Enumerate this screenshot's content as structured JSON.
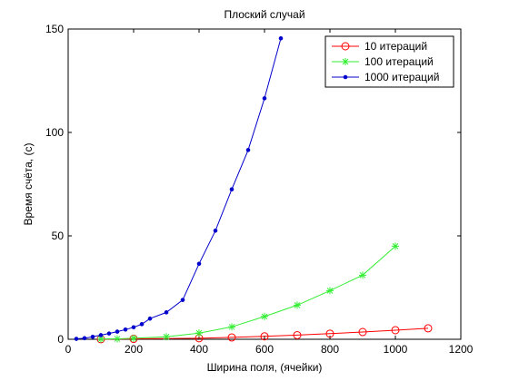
{
  "chart_data": {
    "type": "line",
    "title": "Плоский случай",
    "xlabel": "Ширина поля, (ячейки)",
    "ylabel": "Время счёта, (с)",
    "xlim": [
      0,
      1200
    ],
    "ylim": [
      0,
      150
    ],
    "xticks": [
      0,
      200,
      400,
      600,
      800,
      1000,
      1200
    ],
    "yticks": [
      0,
      50,
      100,
      150
    ],
    "grid": false,
    "legend_position": "top-right",
    "series": [
      {
        "name": "10 итераций",
        "color": "#ff0000",
        "marker": "circle",
        "x": [
          100,
          200,
          400,
          500,
          600,
          700,
          800,
          900,
          1000,
          1100
        ],
        "y": [
          0.05,
          0.2,
          0.5,
          0.9,
          1.4,
          2.0,
          2.7,
          3.5,
          4.4,
          5.3
        ]
      },
      {
        "name": "100 итераций",
        "color": "#33ee33",
        "marker": "asterisk",
        "x": [
          100,
          150,
          200,
          300,
          400,
          500,
          600,
          700,
          800,
          900,
          1000
        ],
        "y": [
          0.1,
          0.2,
          0.5,
          1.2,
          3.0,
          6.0,
          11.0,
          16.5,
          23.5,
          31.0,
          45.0
        ]
      },
      {
        "name": "1000 итераций",
        "color": "#0000cc",
        "marker": "dot",
        "x": [
          25,
          50,
          75,
          100,
          125,
          150,
          175,
          200,
          225,
          250,
          300,
          350,
          400,
          450,
          500,
          550,
          600,
          650
        ],
        "y": [
          0.2,
          0.5,
          1.2,
          2.0,
          2.8,
          3.7,
          4.7,
          5.8,
          7.3,
          10.0,
          13.0,
          19.0,
          36.5,
          52.5,
          72.5,
          91.5,
          116.5,
          145.5
        ]
      }
    ]
  }
}
